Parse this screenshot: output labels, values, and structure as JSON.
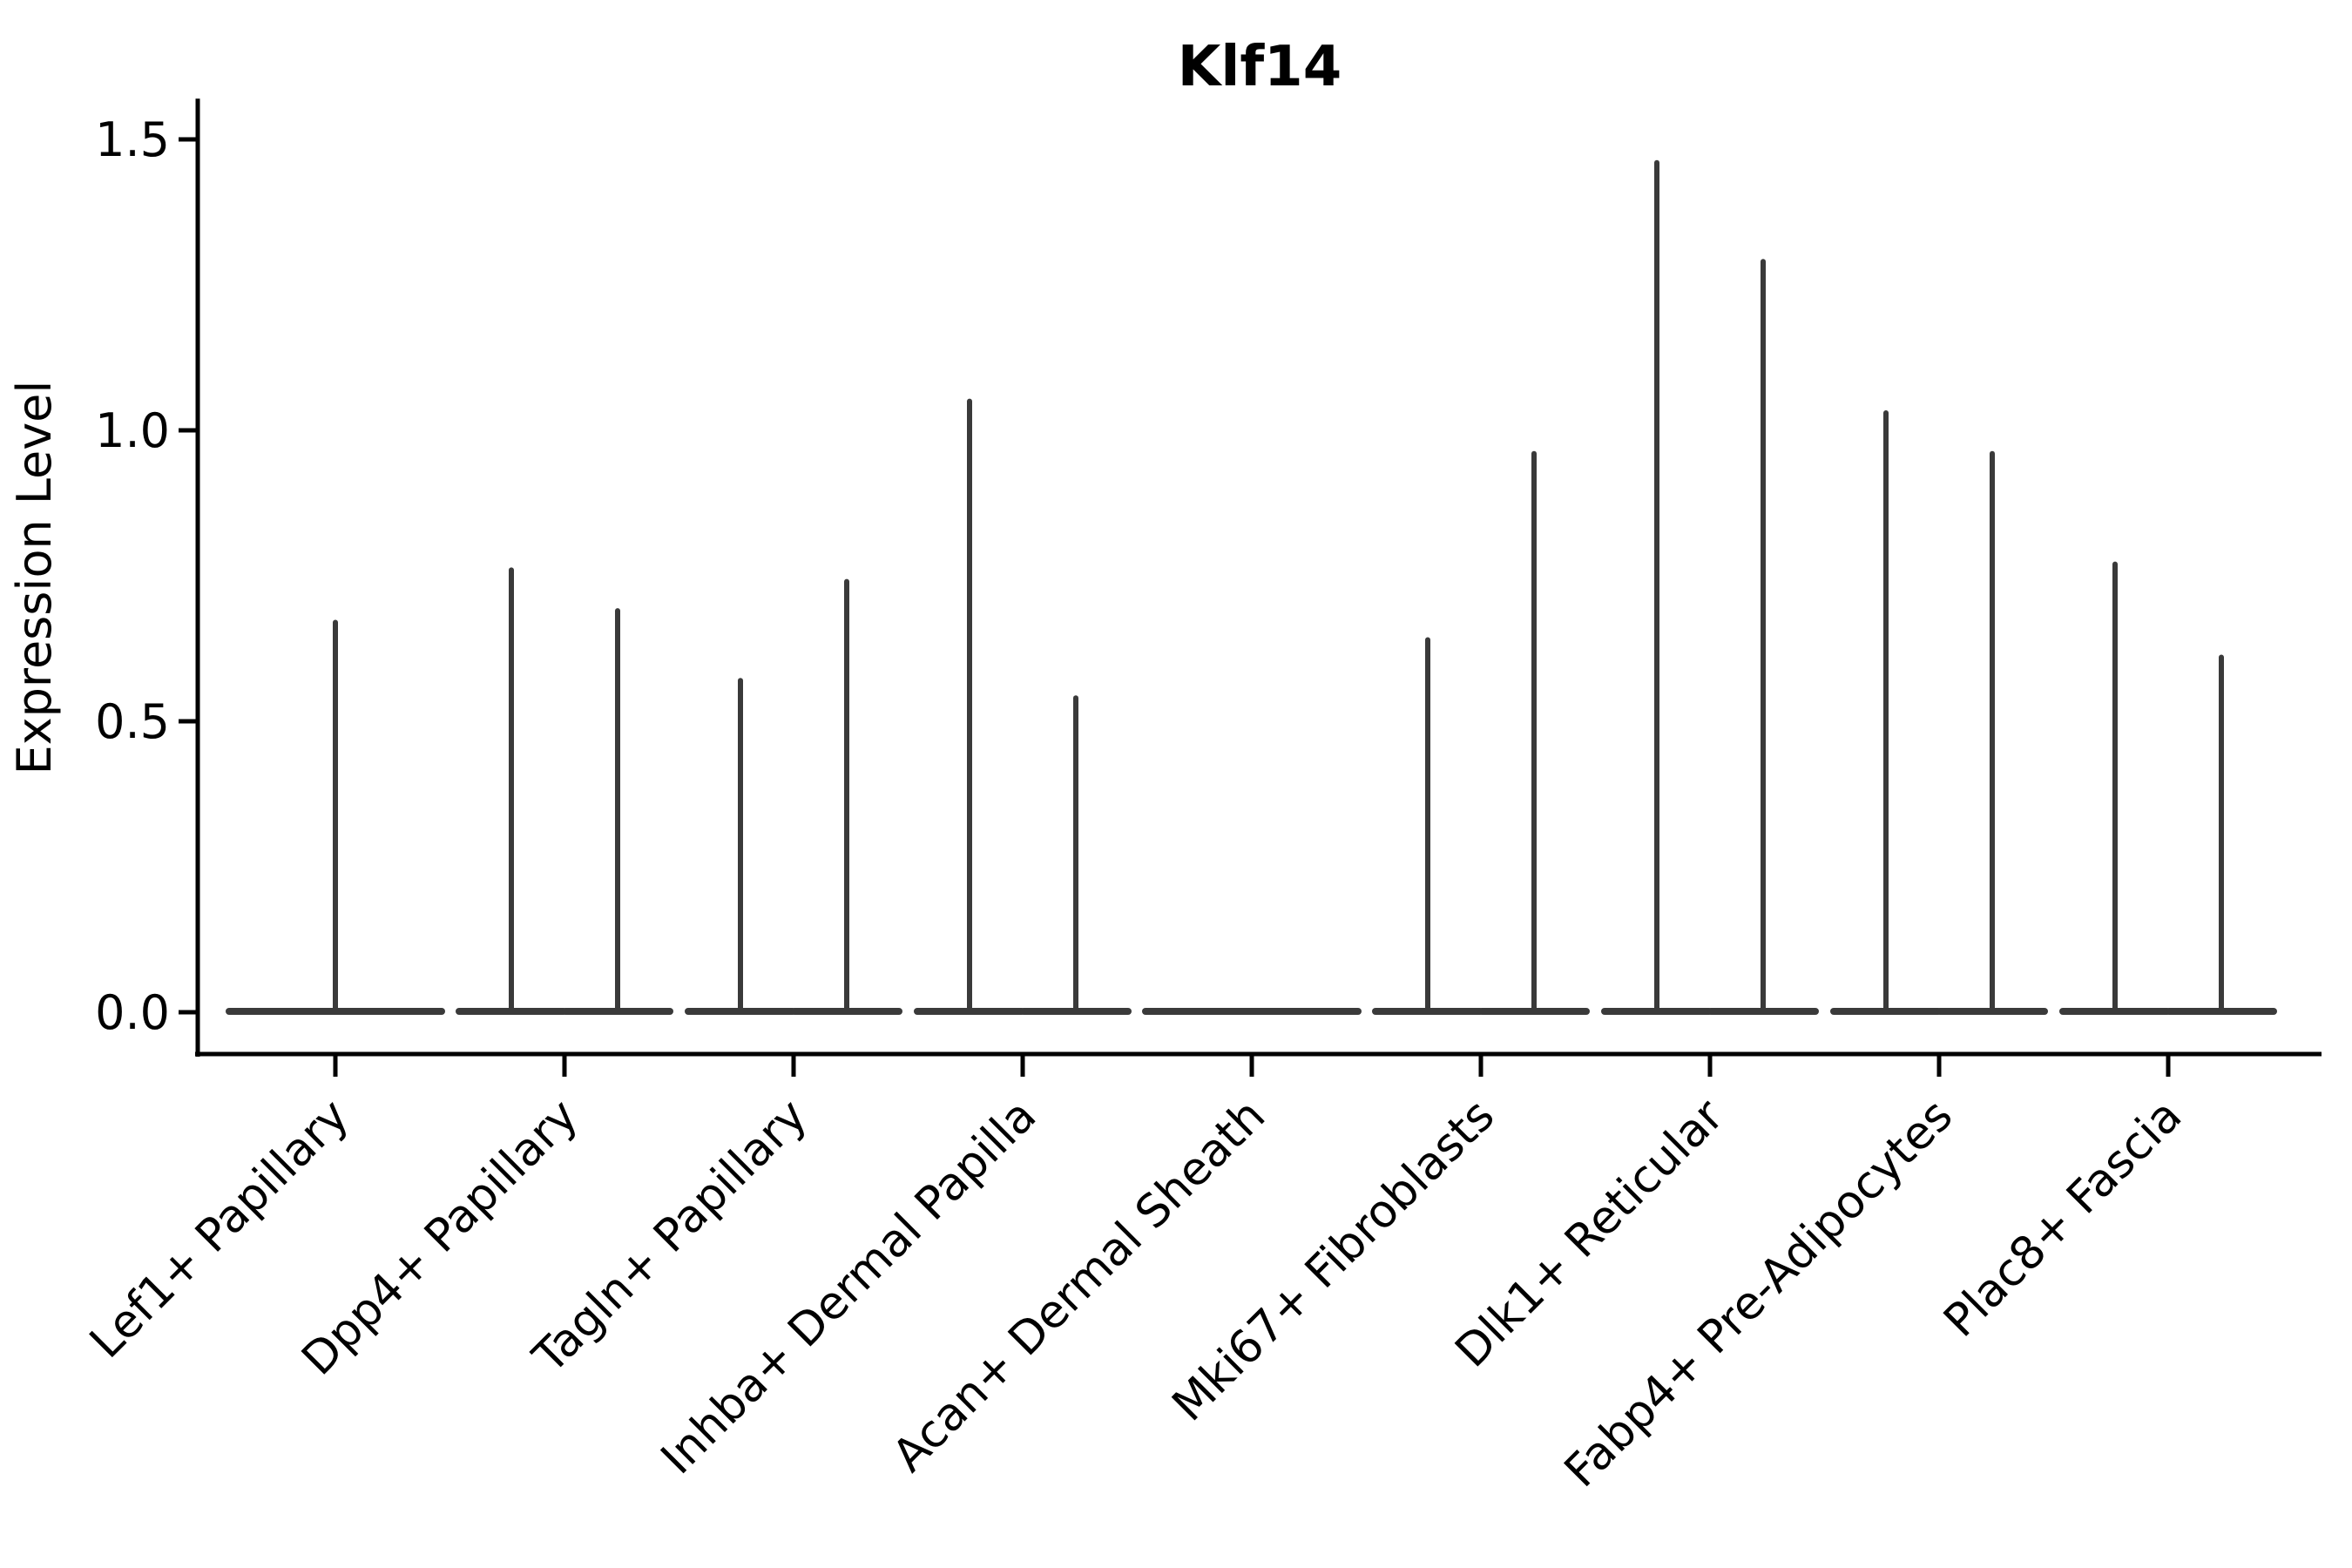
{
  "chart_data": {
    "type": "violin",
    "title": "Klf14",
    "ylabel": "Expression Level",
    "xlabel": "",
    "ylim": [
      -0.07,
      1.57
    ],
    "yticks": [
      0.0,
      0.5,
      1.0,
      1.5
    ],
    "ytick_labels": [
      "0.0",
      "0.5",
      "1.0",
      "1.5"
    ],
    "grid": false,
    "legend": "none",
    "categories": [
      "Lef1+ Papillary",
      "Dpp4+ Papillary",
      "Tagln+ Papillary",
      "Inhba+ Dermal Papilla",
      "Acan+ Dermal Sheath",
      "Mki67+ Fibroblasts",
      "Dlk1+ Reticular",
      "Fabp4+ Pre-Adipocytes",
      "Plac8+ Fascia"
    ],
    "violins": [
      {
        "category": "Lef1+ Papillary",
        "max_values": [
          0.67
        ]
      },
      {
        "category": "Dpp4+ Papillary",
        "max_values": [
          0.76,
          0.69
        ]
      },
      {
        "category": "Tagln+ Papillary",
        "max_values": [
          0.57,
          0.74
        ]
      },
      {
        "category": "Inhba+ Dermal Papilla",
        "max_values": [
          1.05,
          0.54
        ]
      },
      {
        "category": "Acan+ Dermal Sheath",
        "max_values": [
          0.0
        ]
      },
      {
        "category": "Mki67+ Fibroblasts",
        "max_values": [
          0.64,
          0.96
        ]
      },
      {
        "category": "Dlk1+ Reticular",
        "max_values": [
          1.46,
          1.29
        ]
      },
      {
        "category": "Fabp4+ Pre-Adipocytes",
        "max_values": [
          1.03,
          0.96
        ]
      },
      {
        "category": "Plac8+ Fascia",
        "max_values": [
          0.77,
          0.61
        ]
      }
    ]
  },
  "colors": {
    "violin": "#3a3a3a",
    "axis": "#000000",
    "text": "#000000",
    "background": "#ffffff"
  }
}
